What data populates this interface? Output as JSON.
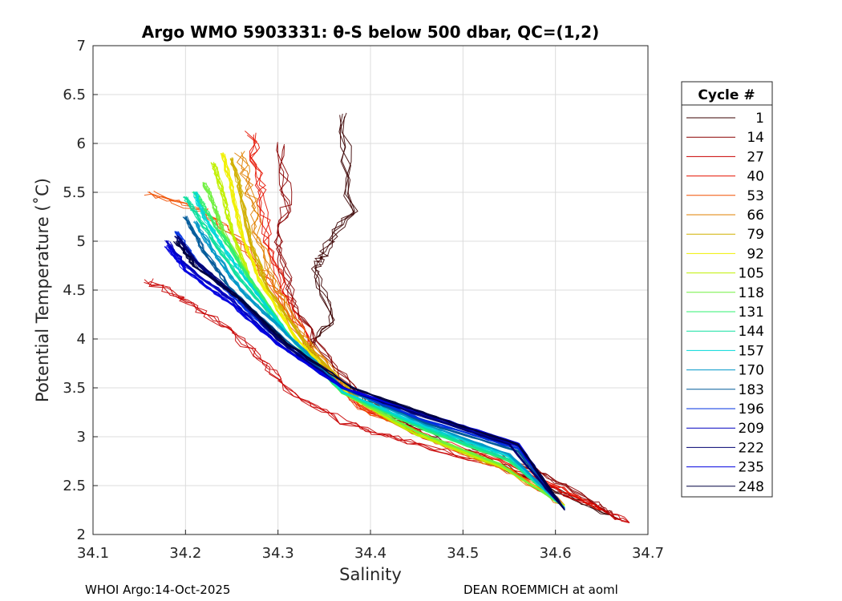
{
  "chart_data": {
    "type": "line",
    "title": "Argo WMO 5903331: θ-S below 500 dbar,  QC=(1,2)",
    "xlabel": "Salinity",
    "ylabel": "Potential Temperature (˚C)",
    "xlim": [
      34.1,
      34.7
    ],
    "ylim": [
      2,
      7
    ],
    "xticks": [
      "34.1",
      "34.2",
      "34.3",
      "34.4",
      "34.5",
      "34.6",
      "34.7"
    ],
    "yticks": [
      "2",
      "2.5",
      "3",
      "3.5",
      "4",
      "4.5",
      "5",
      "5.5",
      "6",
      "6.5",
      "7"
    ],
    "grid": true,
    "legend_title": "Cycle #",
    "legend_position": "right-outside",
    "series": [
      {
        "name": "1",
        "color": "#3a0000",
        "x": [
          34.37,
          34.38,
          34.35,
          34.34,
          34.36,
          34.33,
          34.37,
          34.41,
          34.45,
          34.52,
          34.6,
          34.66
        ],
        "y": [
          6.3,
          5.3,
          4.9,
          4.7,
          4.2,
          3.9,
          3.5,
          3.3,
          3.05,
          2.8,
          2.45,
          2.2
        ]
      },
      {
        "name": "14",
        "color": "#8a0000",
        "x": [
          34.3,
          34.31,
          34.3,
          34.32,
          34.36,
          34.42,
          34.5,
          34.58,
          34.64,
          34.67
        ],
        "y": [
          6.0,
          5.4,
          4.9,
          4.3,
          3.7,
          3.2,
          2.95,
          2.65,
          2.35,
          2.15
        ]
      },
      {
        "name": "27",
        "color": "#c80000",
        "x": [
          34.16,
          34.2,
          34.25,
          34.28,
          34.31,
          34.37,
          34.44,
          34.52,
          34.58,
          34.64,
          34.68
        ],
        "y": [
          4.6,
          4.4,
          4.1,
          3.8,
          3.5,
          3.15,
          2.95,
          2.75,
          2.55,
          2.3,
          2.12
        ]
      },
      {
        "name": "40",
        "color": "#e61200",
        "x": [
          34.27,
          34.28,
          34.29,
          34.31,
          34.34,
          34.39,
          34.46,
          34.54,
          34.6,
          34.65
        ],
        "y": [
          6.1,
          5.6,
          5.0,
          4.4,
          3.8,
          3.3,
          3.0,
          2.75,
          2.5,
          2.25
        ]
      },
      {
        "name": "53",
        "color": "#f05000",
        "x": [
          34.16,
          34.22,
          34.26,
          34.29,
          34.33,
          34.39,
          34.47,
          34.55,
          34.61
        ],
        "y": [
          5.5,
          5.3,
          5.0,
          4.6,
          3.9,
          3.3,
          2.95,
          2.65,
          2.3
        ]
      },
      {
        "name": "66",
        "color": "#e08000",
        "x": [
          34.26,
          34.27,
          34.28,
          34.3,
          34.33,
          34.39,
          34.47,
          34.55,
          34.61
        ],
        "y": [
          5.9,
          5.5,
          5.0,
          4.5,
          4.0,
          3.35,
          2.95,
          2.65,
          2.3
        ]
      },
      {
        "name": "79",
        "color": "#d0b000",
        "x": [
          34.25,
          34.26,
          34.27,
          34.29,
          34.33,
          34.39,
          34.47,
          34.55,
          34.61
        ],
        "y": [
          5.85,
          5.5,
          5.0,
          4.5,
          3.95,
          3.35,
          2.95,
          2.65,
          2.3
        ]
      },
      {
        "name": "92",
        "color": "#f0f000",
        "x": [
          34.24,
          34.25,
          34.26,
          34.28,
          34.32,
          34.38,
          34.46,
          34.54,
          34.61
        ],
        "y": [
          5.9,
          5.55,
          5.1,
          4.6,
          4.0,
          3.4,
          3.0,
          2.7,
          2.3
        ]
      },
      {
        "name": "105",
        "color": "#c0f000",
        "x": [
          34.23,
          34.24,
          34.25,
          34.27,
          34.31,
          34.37,
          34.45,
          34.54,
          34.61
        ],
        "y": [
          5.8,
          5.5,
          5.1,
          4.6,
          4.05,
          3.45,
          3.02,
          2.7,
          2.3
        ]
      },
      {
        "name": "118",
        "color": "#70f040",
        "x": [
          34.22,
          34.23,
          34.24,
          34.27,
          34.31,
          34.37,
          34.45,
          34.54,
          34.61
        ],
        "y": [
          5.6,
          5.4,
          5.1,
          4.6,
          4.05,
          3.45,
          3.05,
          2.72,
          2.28
        ]
      },
      {
        "name": "131",
        "color": "#30f070",
        "x": [
          34.21,
          34.22,
          34.24,
          34.27,
          34.31,
          34.37,
          34.46,
          34.55,
          34.61
        ],
        "y": [
          5.5,
          5.35,
          5.05,
          4.6,
          4.05,
          3.45,
          3.06,
          2.75,
          2.28
        ]
      },
      {
        "name": "144",
        "color": "#10e0a0",
        "x": [
          34.2,
          34.21,
          34.23,
          34.26,
          34.31,
          34.37,
          34.46,
          34.55,
          34.61
        ],
        "y": [
          5.45,
          5.3,
          5.0,
          4.6,
          4.05,
          3.46,
          3.08,
          2.77,
          2.27
        ]
      },
      {
        "name": "157",
        "color": "#00d8d8",
        "x": [
          34.21,
          34.22,
          34.24,
          34.27,
          34.31,
          34.37,
          34.46,
          34.55,
          34.61
        ],
        "y": [
          5.5,
          5.25,
          4.95,
          4.55,
          4.05,
          3.46,
          3.1,
          2.8,
          2.27
        ]
      },
      {
        "name": "170",
        "color": "#0098c8",
        "x": [
          34.21,
          34.23,
          34.26,
          34.31,
          34.37,
          34.46,
          34.55,
          34.61
        ],
        "y": [
          5.2,
          4.9,
          4.5,
          4.05,
          3.5,
          3.12,
          2.82,
          2.27
        ]
      },
      {
        "name": "183",
        "color": "#005a9a",
        "x": [
          34.2,
          34.22,
          34.25,
          34.3,
          34.37,
          34.46,
          34.56,
          34.61
        ],
        "y": [
          5.25,
          4.9,
          4.5,
          4.05,
          3.5,
          3.14,
          2.85,
          2.26
        ]
      },
      {
        "name": "196",
        "color": "#0030e0",
        "x": [
          34.19,
          34.21,
          34.25,
          34.3,
          34.37,
          34.46,
          34.56,
          34.61
        ],
        "y": [
          5.1,
          4.8,
          4.45,
          4.0,
          3.5,
          3.16,
          2.88,
          2.26
        ]
      },
      {
        "name": "209",
        "color": "#0000c0",
        "x": [
          34.18,
          34.2,
          34.25,
          34.3,
          34.37,
          34.47,
          34.56,
          34.61
        ],
        "y": [
          5.0,
          4.75,
          4.4,
          3.95,
          3.5,
          3.18,
          2.9,
          2.25
        ]
      },
      {
        "name": "222",
        "color": "#000070",
        "x": [
          34.19,
          34.21,
          34.26,
          34.3,
          34.37,
          34.46,
          34.55,
          34.61
        ],
        "y": [
          5.05,
          4.8,
          4.4,
          4.0,
          3.5,
          3.2,
          2.92,
          2.25
        ]
      },
      {
        "name": "235",
        "color": "#0000e0",
        "x": [
          34.18,
          34.2,
          34.25,
          34.3,
          34.37,
          34.47,
          34.56,
          34.61
        ],
        "y": [
          4.95,
          4.7,
          4.35,
          3.95,
          3.5,
          3.2,
          2.93,
          2.25
        ]
      },
      {
        "name": "248",
        "color": "#000040",
        "x": [
          34.19,
          34.21,
          34.26,
          34.31,
          34.38,
          34.47,
          34.56,
          34.61
        ],
        "y": [
          5.0,
          4.75,
          4.4,
          3.95,
          3.5,
          3.2,
          2.92,
          2.25
        ]
      }
    ]
  },
  "footer": {
    "left": "WHOI Argo:14-Oct-2025",
    "right": "DEAN ROEMMICH at aoml"
  }
}
